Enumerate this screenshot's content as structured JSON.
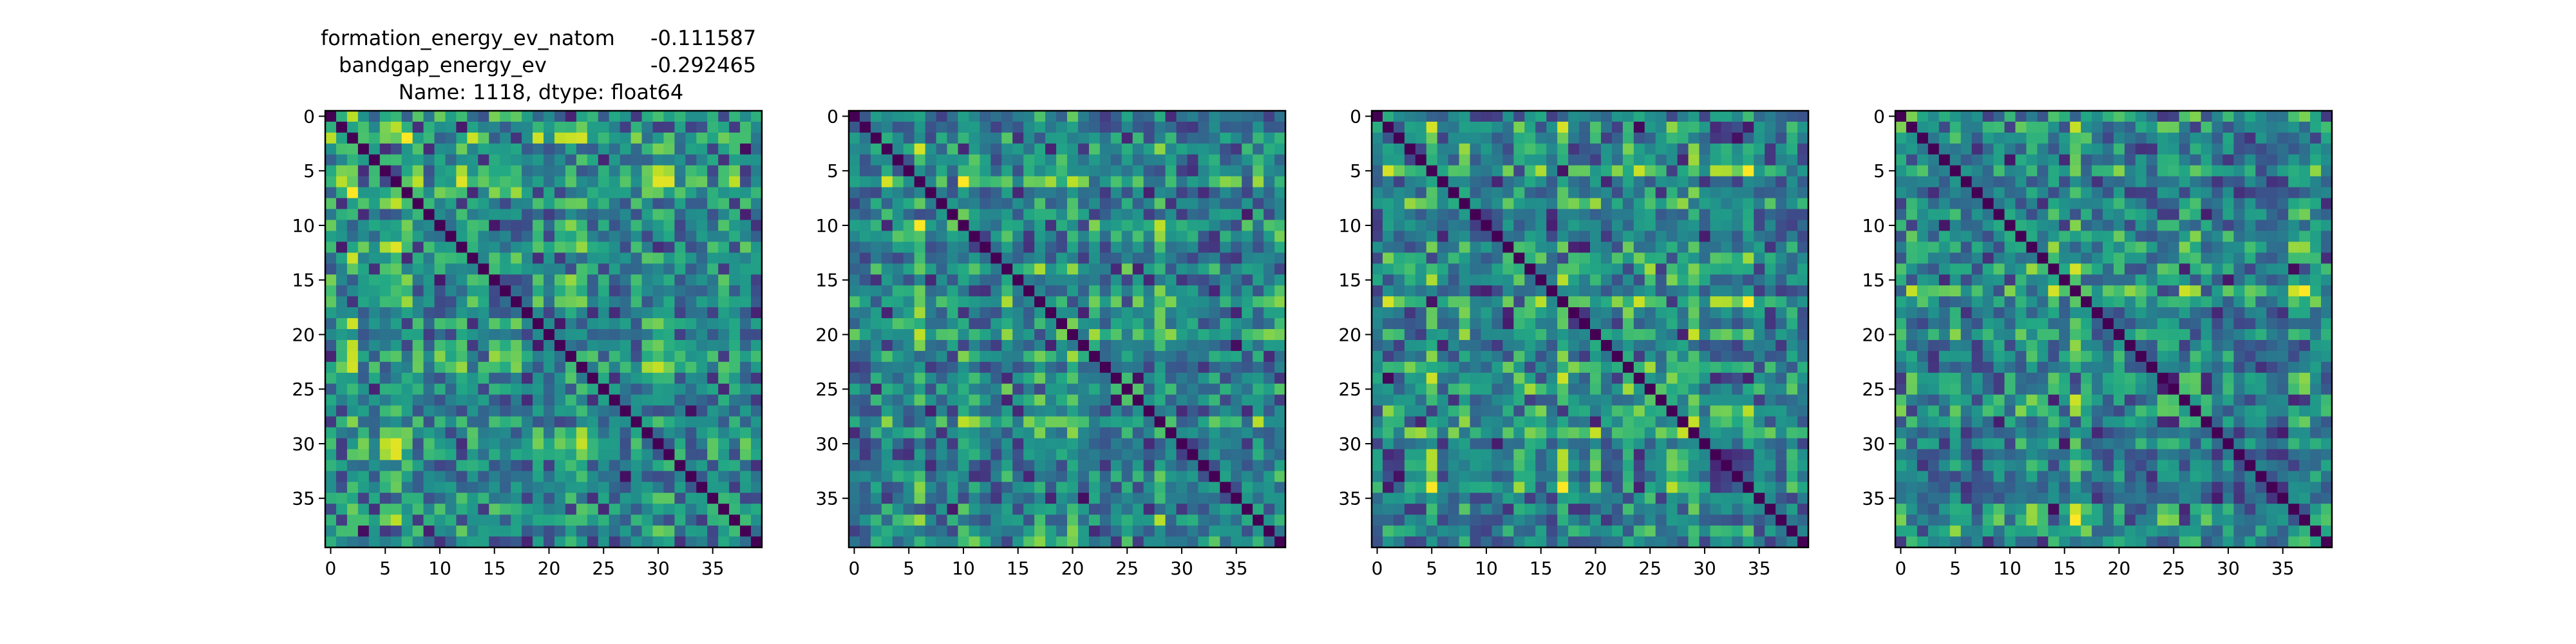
{
  "figure_title": {
    "line1_name": "formation_energy_ev_natom",
    "line1_value": "-0.111587",
    "line2_name": "bandgap_energy_ev",
    "line2_value": "-0.292465",
    "line3": "Name: 1118, dtype: float64"
  },
  "chart_data": [
    {
      "type": "heatmap",
      "colormap": "viridis",
      "size": 40,
      "xlim": [
        0,
        39
      ],
      "ylim": [
        39,
        0
      ],
      "xticks": [
        "0",
        "5",
        "10",
        "15",
        "20",
        "25",
        "30",
        "35"
      ],
      "yticks": [
        "0",
        "5",
        "10",
        "15",
        "20",
        "25",
        "30",
        "35"
      ],
      "diagonal": 0,
      "value_range": [
        0,
        1
      ],
      "pattern": "symmetric distance matrix, zero diagonal, bright bands near rows 0-6, 18-24 and 28-32",
      "seed": 11
    },
    {
      "type": "heatmap",
      "colormap": "viridis",
      "size": 40,
      "xlim": [
        0,
        39
      ],
      "ylim": [
        39,
        0
      ],
      "xticks": [
        "0",
        "5",
        "10",
        "15",
        "20",
        "25",
        "30",
        "35"
      ],
      "yticks": [
        "0",
        "5",
        "10",
        "15",
        "20",
        "25",
        "30",
        "35"
      ],
      "diagonal": 0,
      "value_range": [
        0,
        1
      ],
      "pattern": "symmetric distance matrix, zero diagonal, bright blocks near rows 6-10 and 28-30",
      "seed": 23
    },
    {
      "type": "heatmap",
      "colormap": "viridis",
      "size": 40,
      "xlim": [
        0,
        39
      ],
      "ylim": [
        39,
        0
      ],
      "xticks": [
        "0",
        "5",
        "10",
        "15",
        "20",
        "25",
        "30",
        "35"
      ],
      "yticks": [
        "0",
        "5",
        "10",
        "15",
        "20",
        "25",
        "30",
        "35"
      ],
      "diagonal": 0,
      "value_range": [
        0,
        1
      ],
      "pattern": "symmetric distance matrix, zero diagonal, bright columns near 22-28 and rows 22-28",
      "seed": 37
    },
    {
      "type": "heatmap",
      "colormap": "viridis",
      "size": 40,
      "xlim": [
        0,
        39
      ],
      "ylim": [
        39,
        0
      ],
      "xticks": [
        "0",
        "5",
        "10",
        "15",
        "20",
        "25",
        "30",
        "35"
      ],
      "yticks": [
        "0",
        "5",
        "10",
        "15",
        "20",
        "25",
        "30",
        "35"
      ],
      "diagonal": 0,
      "value_range": [
        0,
        1
      ],
      "pattern": "symmetric distance matrix, zero diagonal, bright bands near rows 0-12 and columns 25-35",
      "seed": 53
    }
  ]
}
